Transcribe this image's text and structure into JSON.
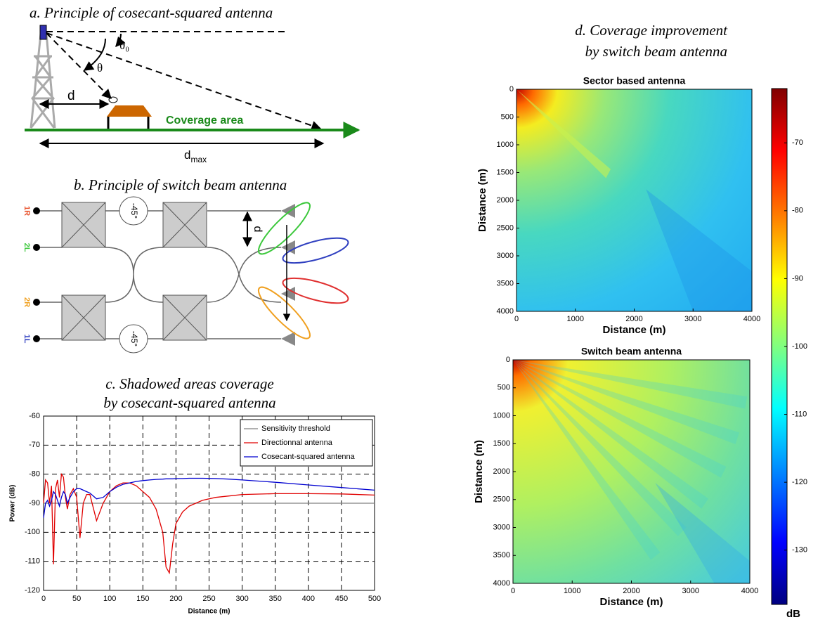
{
  "panel_a": {
    "title": "a. Principle of cosecant-squared antenna",
    "theta": "θ",
    "theta0": "θ₀",
    "d": "d",
    "coverage": "Coverage area",
    "dmax": {
      "base": "d",
      "sub": "max"
    }
  },
  "panel_b": {
    "title": "b. Principle of switch beam antenna",
    "ports": [
      {
        "label": "1R",
        "color": "#e8502a"
      },
      {
        "label": "2L",
        "color": "#3cc83c"
      },
      {
        "label": "2R",
        "color": "#f0a020"
      },
      {
        "label": "1L",
        "color": "#3040c0"
      }
    ],
    "phase_shifts": [
      "-45°",
      "-45°"
    ],
    "spacing": "d"
  },
  "panel_d": {
    "title": [
      "d. Coverage improvement",
      "by switch beam antenna"
    ]
  },
  "chart_data": [
    {
      "type": "line",
      "title": [
        "c. Shadowed areas coverage",
        "by cosecant-squared antenna"
      ],
      "xlabel": "Distance (m)",
      "ylabel": "Power (dB)",
      "grid": true,
      "legend": "upper right",
      "xlim": [
        0,
        500
      ],
      "xticks": [
        0,
        50,
        100,
        150,
        200,
        250,
        300,
        350,
        400,
        450,
        500
      ],
      "ylim": [
        -120,
        -60
      ],
      "yticks": [
        -120,
        -110,
        -100,
        -90,
        -80,
        -70,
        -60
      ],
      "x": [
        0,
        3,
        6,
        9,
        12,
        15,
        18,
        21,
        24,
        27,
        30,
        33,
        36,
        40,
        45,
        50,
        55,
        60,
        65,
        70,
        80,
        90,
        100,
        110,
        120,
        130,
        140,
        150,
        160,
        170,
        180,
        185,
        190,
        195,
        200,
        210,
        220,
        240,
        260,
        280,
        300,
        350,
        400,
        450,
        500
      ],
      "series": [
        {
          "name": "Sensitivity threshold",
          "color": "#808080",
          "values": [
            -90,
            -90,
            -90,
            -90,
            -90,
            -90,
            -90,
            -90,
            -90,
            -90,
            -90,
            -90,
            -90,
            -90,
            -90,
            -90,
            -90,
            -90,
            -90,
            -90,
            -90,
            -90,
            -90,
            -90,
            -90,
            -90,
            -90,
            -90,
            -90,
            -90,
            -90,
            -90,
            -90,
            -90,
            -90,
            -90,
            -90,
            -90,
            -90,
            -90,
            -90,
            -90,
            -90,
            -90,
            -90
          ]
        },
        {
          "name": "Directionnal antenna",
          "color": "#e00000",
          "values": [
            -90,
            -82,
            -83,
            -90,
            -84,
            -111,
            -85,
            -82,
            -88,
            -80,
            -81,
            -88,
            -92,
            -87,
            -85,
            -88,
            -102,
            -90,
            -87,
            -87,
            -96,
            -90,
            -86,
            -84,
            -83,
            -83,
            -84,
            -86,
            -88,
            -92,
            -100,
            -112,
            -114,
            -104,
            -97,
            -93,
            -91,
            -89,
            -88,
            -87.5,
            -87,
            -86.7,
            -86.7,
            -86.8,
            -87.2
          ]
        },
        {
          "name": "Cosecant-squared antenna",
          "color": "#0000d0",
          "values": [
            -95,
            -90,
            -89,
            -91,
            -89,
            -86,
            -87,
            -89,
            -91,
            -88,
            -86,
            -87,
            -90,
            -88,
            -86,
            -85,
            -85,
            -85.5,
            -86,
            -86.5,
            -88.5,
            -88,
            -86,
            -84.5,
            -83.5,
            -83,
            -82.5,
            -82.2,
            -82,
            -81.8,
            -81.7,
            -81.6,
            -81.6,
            -81.6,
            -81.5,
            -81.5,
            -81.4,
            -81.4,
            -81.5,
            -81.7,
            -82,
            -82.8,
            -83.7,
            -84.6,
            -85.5
          ]
        }
      ]
    },
    {
      "type": "heatmap",
      "title": "Sector based antenna",
      "xlabel": "Distance (m)",
      "ylabel": "Distance (m)",
      "xlim": [
        0,
        4000
      ],
      "xticks": [
        0,
        1000,
        2000,
        3000,
        4000
      ],
      "ylim": [
        4000,
        0
      ],
      "yticks": [
        0,
        500,
        1000,
        1500,
        2000,
        2500,
        3000,
        3500,
        4000
      ]
    },
    {
      "type": "heatmap",
      "title": "Switch beam antenna",
      "xlabel": "Distance (m)",
      "ylabel": "Distance (m)",
      "xlim": [
        0,
        4000
      ],
      "xticks": [
        0,
        1000,
        2000,
        3000,
        4000
      ],
      "ylim": [
        4000,
        0
      ],
      "yticks": [
        0,
        500,
        1000,
        1500,
        2000,
        2500,
        3000,
        3500,
        4000
      ]
    },
    {
      "type": "colorbar",
      "label": "dB",
      "ylim": [
        -138,
        -62
      ],
      "yticks": [
        -70,
        -80,
        -90,
        -100,
        -110,
        -120,
        -130
      ]
    }
  ]
}
